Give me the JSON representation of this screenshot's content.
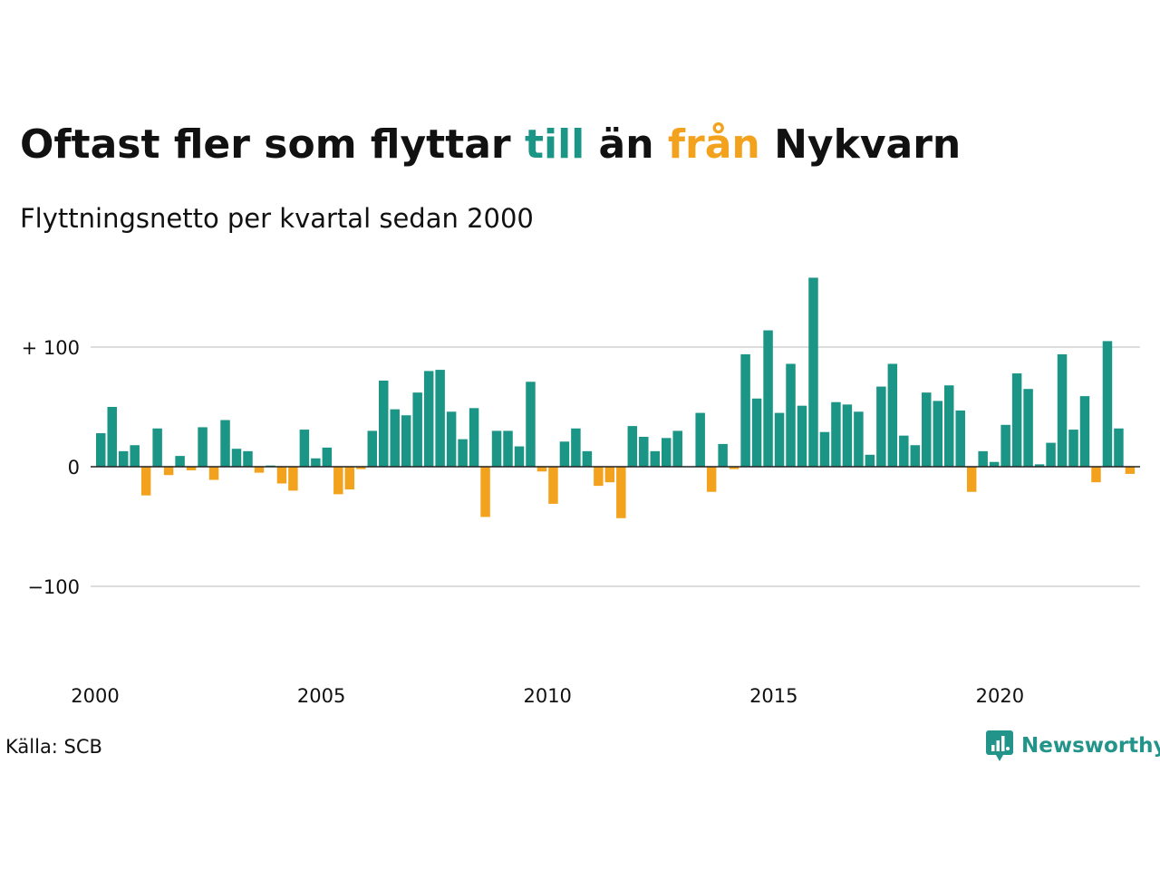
{
  "title": {
    "part1": "Oftast fler som flyttar ",
    "word_in": "till",
    "part2": " än ",
    "word_out": "från",
    "part3": " Nykvarn"
  },
  "subtitle": "Flyttningsnetto per kvartal sedan 2000",
  "source": "Källa: SCB",
  "brand": {
    "name": "Newsworthy",
    "icon": "newsworthy-logo-icon"
  },
  "colors": {
    "positive": "#1a9586",
    "negative": "#f3a21e",
    "grid": "#dddddd",
    "baseline": "#222222",
    "brand": "#22948a"
  },
  "chart_data": {
    "type": "bar",
    "xlabel": "",
    "ylabel": "",
    "ylim": [
      -180,
      160
    ],
    "y_ticks": [
      {
        "value": 100,
        "label": "+ 100"
      },
      {
        "value": 0,
        "label": "0"
      },
      {
        "value": -100,
        "label": "−100"
      }
    ],
    "x_ticks": [
      {
        "value": 2000,
        "label": "2000"
      },
      {
        "value": 2005,
        "label": "2005"
      },
      {
        "value": 2010,
        "label": "2010"
      },
      {
        "value": 2015,
        "label": "2015"
      },
      {
        "value": 2020,
        "label": "2020"
      }
    ],
    "categories": [
      "2000K1",
      "2000K2",
      "2000K3",
      "2000K4",
      "2001K1",
      "2001K2",
      "2001K3",
      "2001K4",
      "2002K1",
      "2002K2",
      "2002K3",
      "2002K4",
      "2003K1",
      "2003K2",
      "2003K3",
      "2003K4",
      "2004K1",
      "2004K2",
      "2004K3",
      "2004K4",
      "2005K1",
      "2005K2",
      "2005K3",
      "2005K4",
      "2006K1",
      "2006K2",
      "2006K3",
      "2006K4",
      "2007K1",
      "2007K2",
      "2007K3",
      "2007K4",
      "2008K1",
      "2008K2",
      "2008K3",
      "2008K4",
      "2009K1",
      "2009K2",
      "2009K3",
      "2009K4",
      "2010K1",
      "2010K2",
      "2010K3",
      "2010K4",
      "2011K1",
      "2011K2",
      "2011K3",
      "2011K4",
      "2012K1",
      "2012K2",
      "2012K3",
      "2012K4",
      "2013K1",
      "2013K2",
      "2013K3",
      "2013K4",
      "2014K1",
      "2014K2",
      "2014K3",
      "2014K4",
      "2015K1",
      "2015K2",
      "2015K3",
      "2015K4",
      "2016K1",
      "2016K2",
      "2016K3",
      "2016K4",
      "2017K1",
      "2017K2",
      "2017K3",
      "2017K4",
      "2018K1",
      "2018K2",
      "2018K3",
      "2018K4",
      "2019K1",
      "2019K2",
      "2019K3",
      "2019K4",
      "2020K1",
      "2020K2",
      "2020K3",
      "2020K4",
      "2021K1",
      "2021K2",
      "2021K3",
      "2021K4",
      "2022K1",
      "2022K2",
      "2022K3",
      "2022K4",
      "2023K1"
    ],
    "values": [
      28,
      50,
      13,
      18,
      -24,
      32,
      -7,
      9,
      -3,
      33,
      -11,
      39,
      15,
      13,
      -5,
      1,
      -14,
      -20,
      31,
      7,
      16,
      -23,
      -19,
      -2,
      30,
      72,
      48,
      43,
      62,
      80,
      81,
      46,
      23,
      49,
      -42,
      30,
      30,
      17,
      71,
      -4,
      -31,
      21,
      32,
      13,
      -16,
      -13,
      -43,
      34,
      25,
      13,
      24,
      30,
      0,
      45,
      -21,
      19,
      -2,
      94,
      57,
      114,
      45,
      86,
      51,
      158,
      29,
      54,
      52,
      46,
      10,
      67,
      86,
      26,
      18,
      62,
      55,
      68,
      47,
      -21,
      13,
      4,
      35,
      78,
      65,
      2,
      20,
      94,
      31,
      59,
      -13,
      105,
      32,
      -6,
      0
    ]
  }
}
